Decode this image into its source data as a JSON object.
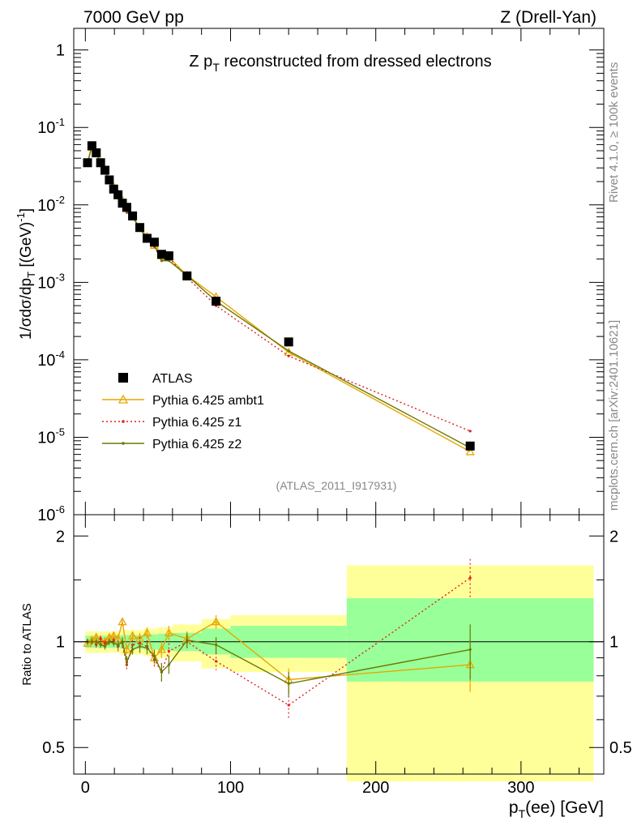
{
  "header": {
    "left": "7000 GeV pp",
    "right": "Z (Drell-Yan)"
  },
  "side_labels": {
    "rivet": "Rivet 4.1.0, ≥ 100k events",
    "mcplots": "mcplots.cern.ch [arXiv:2401.10621]"
  },
  "chart_data": [
    {
      "type": "line",
      "panel": "main",
      "title": "Z p_T reconstructed from dressed electrons",
      "analysis_id": "(ATLAS_2011_I917931)",
      "ylabel": "1/σdσ/dp_T [(GeV)^-1]",
      "xlabel": "p_T(ee) [GeV]",
      "yscale": "log",
      "xlim": [
        -8,
        357
      ],
      "ylim": [
        1e-06,
        1.9
      ],
      "y_ticks": [
        1e-06,
        1e-05,
        0.0001,
        0.001,
        0.01,
        0.1,
        1
      ],
      "x": [
        1.5,
        4.5,
        7.5,
        10.5,
        13.5,
        16.5,
        19.5,
        22.5,
        25.5,
        28.5,
        32.5,
        37.5,
        42.5,
        47.5,
        52.5,
        57.5,
        70,
        90,
        140,
        265
      ],
      "series": [
        {
          "name": "ATLAS",
          "style": "marker-square",
          "color": "#000000",
          "values": [
            0.035,
            0.058,
            0.047,
            0.035,
            0.028,
            0.021,
            0.016,
            0.0135,
            0.0105,
            0.0093,
            0.0072,
            0.0051,
            0.0037,
            0.0033,
            0.0023,
            0.0022,
            0.00121,
            0.00057,
            0.00017,
            7.7e-06
          ]
        },
        {
          "name": "Pythia 6.425 ambt1",
          "style": "line-triangle",
          "color": "#e8a600",
          "values": [
            0.035,
            0.055,
            0.048,
            0.036,
            0.028,
            0.021,
            0.017,
            0.0138,
            0.0115,
            0.009,
            0.0071,
            0.0051,
            0.0039,
            0.003,
            0.0022,
            0.0021,
            0.00123,
            0.00065,
            0.000125,
            6.5e-06
          ]
        },
        {
          "name": "Pythia 6.425 z1",
          "style": "dotted-dot",
          "color": "#e02020",
          "values": [
            0.035,
            0.058,
            0.045,
            0.036,
            0.028,
            0.021,
            0.0162,
            0.013,
            0.0105,
            0.008,
            0.0071,
            0.005,
            0.0036,
            0.0029,
            0.0019,
            0.0021,
            0.00115,
            0.0005,
            0.000112,
            1.2e-05
          ]
        },
        {
          "name": "Pythia 6.425 z2",
          "style": "line-dot",
          "color": "#6b7a00",
          "values": [
            0.035,
            0.058,
            0.046,
            0.035,
            0.027,
            0.021,
            0.016,
            0.0132,
            0.0108,
            0.0082,
            0.0069,
            0.005,
            0.0036,
            0.003,
            0.0019,
            0.0019,
            0.00123,
            0.00057,
            0.00013,
            7.3e-06
          ]
        }
      ],
      "legend": [
        "ATLAS",
        "Pythia 6.425 ambt1",
        "Pythia 6.425 z1",
        "Pythia 6.425 z2"
      ],
      "legend_position": "bottom-left"
    },
    {
      "type": "line",
      "panel": "ratio",
      "ylabel": "Ratio to ATLAS",
      "xlabel": "p_T(ee) [GeV]",
      "xlim": [
        -8,
        357
      ],
      "ylim": [
        0.42,
        2.3
      ],
      "y_ticks": [
        0.5,
        1,
        2
      ],
      "x_ticks": [
        0,
        100,
        200,
        300
      ],
      "reference_line": 1,
      "bands": [
        {
          "x0": 0,
          "x1": 15,
          "yellow": [
            0.93,
            1.07
          ],
          "green": [
            0.96,
            1.04
          ]
        },
        {
          "x0": 15,
          "x1": 24,
          "yellow": [
            0.93,
            1.07
          ],
          "green": [
            0.96,
            1.04
          ]
        },
        {
          "x0": 24,
          "x1": 40,
          "yellow": [
            0.92,
            1.08
          ],
          "green": [
            0.955,
            1.045
          ]
        },
        {
          "x0": 40,
          "x1": 50,
          "yellow": [
            0.91,
            1.09
          ],
          "green": [
            0.95,
            1.05
          ]
        },
        {
          "x0": 50,
          "x1": 60,
          "yellow": [
            0.9,
            1.1
          ],
          "green": [
            0.945,
            1.055
          ]
        },
        {
          "x0": 60,
          "x1": 80,
          "yellow": [
            0.88,
            1.12
          ],
          "green": [
            0.94,
            1.06
          ]
        },
        {
          "x0": 80,
          "x1": 100,
          "yellow": [
            0.84,
            1.16
          ],
          "green": [
            0.92,
            1.09
          ]
        },
        {
          "x0": 100,
          "x1": 180,
          "yellow": [
            0.82,
            1.19
          ],
          "green": [
            0.9,
            1.11
          ]
        },
        {
          "x0": 180,
          "x1": 350,
          "yellow": [
            0.4,
            1.65
          ],
          "green": [
            0.77,
            1.33
          ]
        }
      ],
      "x": [
        1.5,
        4.5,
        7.5,
        10.5,
        13.5,
        16.5,
        19.5,
        22.5,
        25.5,
        28.5,
        32.5,
        37.5,
        42.5,
        47.5,
        52.5,
        57.5,
        70,
        90,
        140,
        265
      ],
      "series": [
        {
          "name": "Pythia 6.425 ambt1",
          "color": "#e8a600",
          "values": [
            0.99,
            1.01,
            1.03,
            1.01,
            1.0,
            1.03,
            1.04,
            1.02,
            1.14,
            0.95,
            1.04,
            1.02,
            1.06,
            0.9,
            0.95,
            1.06,
            1.02,
            1.14,
            0.78,
            0.86
          ],
          "errors": [
            0.02,
            0.02,
            0.02,
            0.02,
            0.02,
            0.02,
            0.02,
            0.03,
            0.03,
            0.03,
            0.03,
            0.04,
            0.04,
            0.04,
            0.05,
            0.05,
            0.05,
            0.05,
            0.06,
            0.14
          ]
        },
        {
          "name": "Pythia 6.425 z1",
          "color": "#e02020",
          "values": [
            1.0,
            1.0,
            0.98,
            1.02,
            0.99,
            1.0,
            1.01,
            0.97,
            0.99,
            0.86,
            0.98,
            0.99,
            0.97,
            0.89,
            0.82,
            0.94,
            1.0,
            0.88,
            0.66,
            1.52
          ],
          "errors": [
            0.02,
            0.02,
            0.02,
            0.02,
            0.02,
            0.02,
            0.02,
            0.03,
            0.03,
            0.03,
            0.03,
            0.04,
            0.04,
            0.04,
            0.05,
            0.05,
            0.05,
            0.05,
            0.06,
            0.2
          ]
        },
        {
          "name": "Pythia 6.425 z2",
          "color": "#6b7a00",
          "values": [
            1.0,
            1.0,
            1.0,
            0.98,
            0.97,
            1.0,
            0.99,
            0.98,
            1.0,
            0.88,
            0.95,
            0.97,
            0.96,
            0.91,
            0.82,
            0.86,
            1.01,
            0.98,
            0.76,
            0.95
          ],
          "errors": [
            0.02,
            0.02,
            0.02,
            0.02,
            0.02,
            0.02,
            0.02,
            0.03,
            0.03,
            0.03,
            0.03,
            0.04,
            0.04,
            0.04,
            0.05,
            0.05,
            0.05,
            0.05,
            0.06,
            0.17
          ]
        }
      ]
    }
  ]
}
